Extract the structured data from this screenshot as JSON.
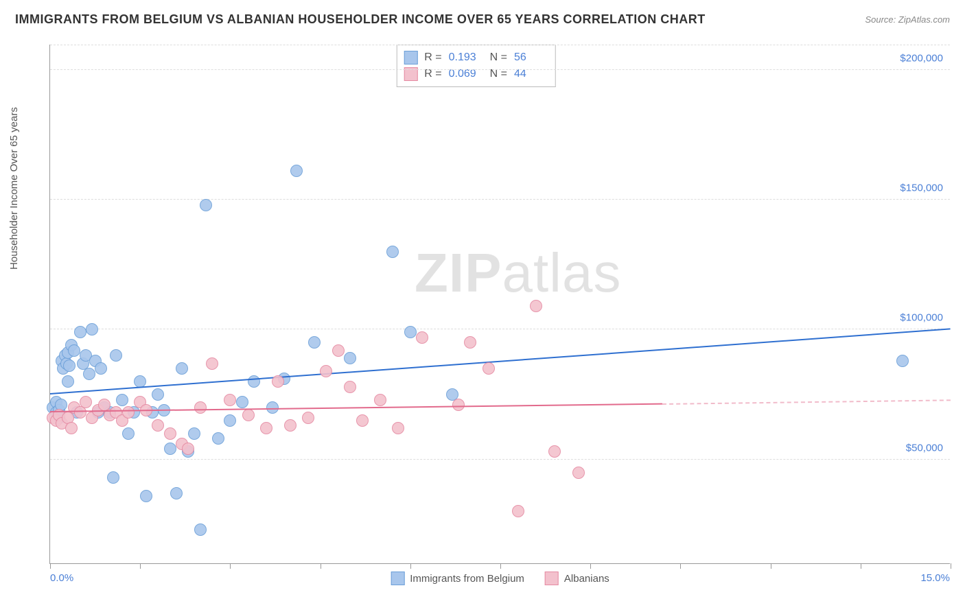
{
  "title": "IMMIGRANTS FROM BELGIUM VS ALBANIAN HOUSEHOLDER INCOME OVER 65 YEARS CORRELATION CHART",
  "source": "Source: ZipAtlas.com",
  "watermark_bold": "ZIP",
  "watermark_rest": "atlas",
  "chart": {
    "type": "scatter",
    "ylabel": "Householder Income Over 65 years",
    "background_color": "#ffffff",
    "grid_color": "#dddddd",
    "axis_color": "#999999",
    "text_color": "#555555",
    "value_color": "#4a7fd6",
    "xlim": [
      0,
      15
    ],
    "ylim": [
      10000,
      210000
    ],
    "xtick_positions": [
      0,
      1.5,
      3,
      4.5,
      6,
      7.5,
      9,
      10.5,
      12,
      13.5,
      15
    ],
    "x_start_label": "0.0%",
    "x_end_label": "15.0%",
    "ytick_positions": [
      50000,
      100000,
      150000,
      200000
    ],
    "ytick_labels": [
      "$50,000",
      "$100,000",
      "$150,000",
      "$200,000"
    ],
    "point_radius": 9,
    "point_border_width": 1.2,
    "point_fill_opacity": 0.35,
    "trend_line_width": 2,
    "series": [
      {
        "id": "belgium",
        "label": "Immigrants from Belgium",
        "fill_color": "#a8c6ec",
        "border_color": "#6b9fd8",
        "line_color": "#2e6fd0",
        "R": "0.193",
        "N": "56",
        "trend": {
          "x1": 0,
          "y1": 75000,
          "x2": 15,
          "y2": 100000,
          "dash_from_x": 15
        },
        "points": [
          [
            0.05,
            70000
          ],
          [
            0.1,
            72000
          ],
          [
            0.1,
            68000
          ],
          [
            0.15,
            69000
          ],
          [
            0.15,
            66000
          ],
          [
            0.18,
            71000
          ],
          [
            0.2,
            88000
          ],
          [
            0.22,
            85000
          ],
          [
            0.25,
            90000
          ],
          [
            0.28,
            87000
          ],
          [
            0.3,
            80000
          ],
          [
            0.3,
            91000
          ],
          [
            0.32,
            86000
          ],
          [
            0.35,
            94000
          ],
          [
            0.4,
            92000
          ],
          [
            0.45,
            68000
          ],
          [
            0.5,
            99000
          ],
          [
            0.55,
            87000
          ],
          [
            0.6,
            90000
          ],
          [
            0.65,
            83000
          ],
          [
            0.7,
            100000
          ],
          [
            0.75,
            88000
          ],
          [
            0.8,
            68000
          ],
          [
            0.85,
            85000
          ],
          [
            0.9,
            70000
          ],
          [
            1.0,
            68000
          ],
          [
            1.05,
            43000
          ],
          [
            1.1,
            90000
          ],
          [
            1.2,
            73000
          ],
          [
            1.3,
            60000
          ],
          [
            1.4,
            68000
          ],
          [
            1.5,
            80000
          ],
          [
            1.6,
            36000
          ],
          [
            1.7,
            68000
          ],
          [
            1.8,
            75000
          ],
          [
            1.9,
            69000
          ],
          [
            2.0,
            54000
          ],
          [
            2.1,
            37000
          ],
          [
            2.2,
            85000
          ],
          [
            2.3,
            53000
          ],
          [
            2.4,
            60000
          ],
          [
            2.5,
            23000
          ],
          [
            2.6,
            148000
          ],
          [
            2.8,
            58000
          ],
          [
            3.0,
            65000
          ],
          [
            3.2,
            72000
          ],
          [
            3.4,
            80000
          ],
          [
            3.7,
            70000
          ],
          [
            3.9,
            81000
          ],
          [
            4.1,
            161000
          ],
          [
            4.4,
            95000
          ],
          [
            5.0,
            89000
          ],
          [
            5.7,
            130000
          ],
          [
            6.0,
            99000
          ],
          [
            6.7,
            75000
          ],
          [
            14.2,
            88000
          ]
        ]
      },
      {
        "id": "albanians",
        "label": "Albanians",
        "fill_color": "#f3c1cd",
        "border_color": "#e58aa2",
        "line_color": "#e26a8c",
        "R": "0.069",
        "N": "44",
        "trend": {
          "x1": 0,
          "y1": 68000,
          "x2": 10.2,
          "y2": 71000,
          "dash_from_x": 10.2,
          "dash_to_x": 15,
          "dash_to_y": 72500
        },
        "points": [
          [
            0.05,
            66000
          ],
          [
            0.1,
            65000
          ],
          [
            0.15,
            67000
          ],
          [
            0.2,
            64000
          ],
          [
            0.3,
            66000
          ],
          [
            0.35,
            62000
          ],
          [
            0.4,
            70000
          ],
          [
            0.5,
            68000
          ],
          [
            0.6,
            72000
          ],
          [
            0.7,
            66000
          ],
          [
            0.8,
            69000
          ],
          [
            0.9,
            71000
          ],
          [
            1.0,
            67000
          ],
          [
            1.1,
            68000
          ],
          [
            1.2,
            65000
          ],
          [
            1.3,
            68000
          ],
          [
            1.5,
            72000
          ],
          [
            1.6,
            69000
          ],
          [
            1.8,
            63000
          ],
          [
            2.0,
            60000
          ],
          [
            2.2,
            56000
          ],
          [
            2.3,
            54000
          ],
          [
            2.5,
            70000
          ],
          [
            2.7,
            87000
          ],
          [
            3.0,
            73000
          ],
          [
            3.3,
            67000
          ],
          [
            3.6,
            62000
          ],
          [
            3.8,
            80000
          ],
          [
            4.0,
            63000
          ],
          [
            4.3,
            66000
          ],
          [
            4.6,
            84000
          ],
          [
            4.8,
            92000
          ],
          [
            5.0,
            78000
          ],
          [
            5.2,
            65000
          ],
          [
            5.5,
            73000
          ],
          [
            5.8,
            62000
          ],
          [
            6.2,
            97000
          ],
          [
            6.8,
            71000
          ],
          [
            7.0,
            95000
          ],
          [
            7.3,
            85000
          ],
          [
            7.8,
            30000
          ],
          [
            8.1,
            109000
          ],
          [
            8.4,
            53000
          ],
          [
            8.8,
            45000
          ]
        ]
      }
    ]
  }
}
